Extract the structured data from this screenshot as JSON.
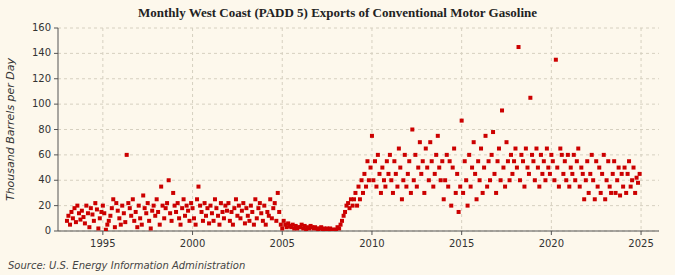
{
  "chart_data": {
    "type": "scatter",
    "title": "Monthly West Coast (PADD 5) Exports of Conventional Motor Gasoline",
    "ylabel": "Thousand Barrels per Day",
    "source": "Source: U.S. Energy Information Administration",
    "color": "#cc0000",
    "marker": "square",
    "grid": true,
    "xlim": [
      1992.5,
      2026
    ],
    "ylim": [
      0,
      160
    ],
    "xticks": [
      1995,
      2000,
      2005,
      2010,
      2015,
      2020,
      2025
    ],
    "yticks": [
      0,
      20,
      40,
      60,
      80,
      100,
      120,
      140,
      160
    ],
    "x": [
      1993.0,
      1993.08,
      1993.17,
      1993.25,
      1993.33,
      1993.42,
      1993.5,
      1993.58,
      1993.67,
      1993.75,
      1993.83,
      1993.92,
      1994.0,
      1994.08,
      1994.17,
      1994.25,
      1994.33,
      1994.42,
      1994.5,
      1994.58,
      1994.67,
      1994.75,
      1994.83,
      1994.92,
      1995.0,
      1995.08,
      1995.17,
      1995.25,
      1995.33,
      1995.42,
      1995.5,
      1995.58,
      1995.67,
      1995.75,
      1995.83,
      1995.92,
      1996.0,
      1996.08,
      1996.17,
      1996.25,
      1996.33,
      1996.42,
      1996.5,
      1996.58,
      1996.67,
      1996.75,
      1996.83,
      1996.92,
      1997.0,
      1997.08,
      1997.17,
      1997.25,
      1997.33,
      1997.42,
      1997.5,
      1997.58,
      1997.67,
      1997.75,
      1997.83,
      1997.92,
      1998.0,
      1998.08,
      1998.17,
      1998.25,
      1998.33,
      1998.42,
      1998.5,
      1998.58,
      1998.67,
      1998.75,
      1998.83,
      1998.92,
      1999.0,
      1999.08,
      1999.17,
      1999.25,
      1999.33,
      1999.42,
      1999.5,
      1999.58,
      1999.67,
      1999.75,
      1999.83,
      1999.92,
      2000.0,
      2000.08,
      2000.17,
      2000.25,
      2000.33,
      2000.42,
      2000.5,
      2000.58,
      2000.67,
      2000.75,
      2000.83,
      2000.92,
      2001.0,
      2001.08,
      2001.17,
      2001.25,
      2001.33,
      2001.42,
      2001.5,
      2001.58,
      2001.67,
      2001.75,
      2001.83,
      2001.92,
      2002.0,
      2002.08,
      2002.17,
      2002.25,
      2002.33,
      2002.42,
      2002.5,
      2002.58,
      2002.67,
      2002.75,
      2002.83,
      2002.92,
      2003.0,
      2003.08,
      2003.17,
      2003.25,
      2003.33,
      2003.42,
      2003.5,
      2003.58,
      2003.67,
      2003.75,
      2003.83,
      2003.92,
      2004.0,
      2004.08,
      2004.17,
      2004.25,
      2004.33,
      2004.42,
      2004.5,
      2004.58,
      2004.67,
      2004.75,
      2004.83,
      2004.92,
      2005.0,
      2005.08,
      2005.17,
      2005.25,
      2005.33,
      2005.42,
      2005.5,
      2005.58,
      2005.67,
      2005.75,
      2005.83,
      2005.92,
      2006.0,
      2006.08,
      2006.17,
      2006.25,
      2006.33,
      2006.42,
      2006.5,
      2006.58,
      2006.67,
      2006.75,
      2006.83,
      2006.92,
      2007.0,
      2007.08,
      2007.17,
      2007.25,
      2007.33,
      2007.42,
      2007.5,
      2007.58,
      2007.67,
      2007.75,
      2007.83,
      2007.92,
      2008.0,
      2008.08,
      2008.17,
      2008.25,
      2008.33,
      2008.42,
      2008.5,
      2008.58,
      2008.67,
      2008.75,
      2008.83,
      2008.92,
      2009.0,
      2009.08,
      2009.17,
      2009.25,
      2009.33,
      2009.42,
      2009.5,
      2009.58,
      2009.67,
      2009.75,
      2009.83,
      2009.92,
      2010.0,
      2010.08,
      2010.17,
      2010.25,
      2010.33,
      2010.42,
      2010.5,
      2010.58,
      2010.67,
      2010.75,
      2010.83,
      2010.92,
      2011.0,
      2011.08,
      2011.17,
      2011.25,
      2011.33,
      2011.42,
      2011.5,
      2011.58,
      2011.67,
      2011.75,
      2011.83,
      2011.92,
      2012.0,
      2012.08,
      2012.17,
      2012.25,
      2012.33,
      2012.42,
      2012.5,
      2012.58,
      2012.67,
      2012.75,
      2012.83,
      2012.92,
      2013.0,
      2013.08,
      2013.17,
      2013.25,
      2013.33,
      2013.42,
      2013.5,
      2013.58,
      2013.67,
      2013.75,
      2013.83,
      2013.92,
      2014.0,
      2014.08,
      2014.17,
      2014.25,
      2014.33,
      2014.42,
      2014.5,
      2014.58,
      2014.67,
      2014.75,
      2014.83,
      2014.92,
      2015.0,
      2015.08,
      2015.17,
      2015.25,
      2015.33,
      2015.42,
      2015.5,
      2015.58,
      2015.67,
      2015.75,
      2015.83,
      2015.92,
      2016.0,
      2016.08,
      2016.17,
      2016.25,
      2016.33,
      2016.42,
      2016.5,
      2016.58,
      2016.67,
      2016.75,
      2016.83,
      2016.92,
      2017.0,
      2017.08,
      2017.17,
      2017.25,
      2017.33,
      2017.42,
      2017.5,
      2017.58,
      2017.67,
      2017.75,
      2017.83,
      2017.92,
      2018.0,
      2018.08,
      2018.17,
      2018.25,
      2018.33,
      2018.42,
      2018.5,
      2018.58,
      2018.67,
      2018.75,
      2018.83,
      2018.92,
      2019.0,
      2019.08,
      2019.17,
      2019.25,
      2019.33,
      2019.42,
      2019.5,
      2019.58,
      2019.67,
      2019.75,
      2019.83,
      2019.92,
      2020.0,
      2020.08,
      2020.17,
      2020.25,
      2020.33,
      2020.42,
      2020.5,
      2020.58,
      2020.67,
      2020.75,
      2020.83,
      2020.92,
      2021.0,
      2021.08,
      2021.17,
      2021.25,
      2021.33,
      2021.42,
      2021.5,
      2021.58,
      2021.67,
      2021.75,
      2021.83,
      2021.92,
      2022.0,
      2022.08,
      2022.17,
      2022.25,
      2022.33,
      2022.42,
      2022.5,
      2022.58,
      2022.67,
      2022.75,
      2022.83,
      2022.92,
      2023.0,
      2023.08,
      2023.17,
      2023.25,
      2023.33,
      2023.42,
      2023.5,
      2023.58,
      2023.67,
      2023.75,
      2023.83,
      2023.92,
      2024.0,
      2024.08,
      2024.17,
      2024.25,
      2024.33,
      2024.42,
      2024.5,
      2024.58,
      2024.67,
      2024.75,
      2024.83,
      2024.92
    ],
    "values": [
      8,
      12,
      5,
      15,
      10,
      18,
      7,
      20,
      14,
      9,
      16,
      11,
      6,
      20,
      14,
      3,
      18,
      13,
      8,
      22,
      17,
      2,
      10,
      15,
      20,
      14,
      1,
      5,
      8,
      12,
      18,
      25,
      3,
      22,
      16,
      10,
      5,
      20,
      14,
      7,
      60,
      22,
      18,
      12,
      25,
      8,
      15,
      3,
      20,
      10,
      5,
      28,
      18,
      14,
      22,
      8,
      2,
      16,
      20,
      12,
      25,
      15,
      5,
      35,
      20,
      10,
      18,
      22,
      40,
      14,
      8,
      30,
      20,
      15,
      22,
      10,
      5,
      18,
      25,
      12,
      20,
      16,
      8,
      22,
      18,
      10,
      5,
      25,
      35,
      20,
      15,
      8,
      22,
      12,
      18,
      6,
      20,
      14,
      8,
      25,
      18,
      12,
      5,
      22,
      15,
      10,
      20,
      16,
      22,
      8,
      15,
      5,
      18,
      25,
      12,
      20,
      10,
      16,
      22,
      6,
      18,
      12,
      8,
      20,
      15,
      5,
      25,
      10,
      18,
      22,
      14,
      8,
      20,
      5,
      15,
      12,
      25,
      10,
      18,
      22,
      8,
      30,
      15,
      5,
      2,
      8,
      5,
      3,
      6,
      4,
      3,
      5,
      2,
      4,
      2,
      3,
      3,
      5,
      2,
      4,
      1,
      3,
      2,
      4,
      3,
      2,
      3,
      2,
      1,
      2,
      3,
      1,
      2,
      1,
      2,
      1,
      2,
      1,
      1,
      1,
      1,
      3,
      2,
      5,
      8,
      12,
      15,
      20,
      22,
      18,
      25,
      20,
      25,
      30,
      20,
      35,
      25,
      40,
      30,
      45,
      35,
      55,
      40,
      50,
      75,
      40,
      55,
      35,
      60,
      45,
      30,
      50,
      40,
      35,
      55,
      45,
      60,
      40,
      30,
      55,
      45,
      35,
      65,
      50,
      25,
      40,
      60,
      35,
      45,
      55,
      30,
      80,
      40,
      60,
      35,
      50,
      70,
      45,
      55,
      30,
      65,
      50,
      40,
      70,
      55,
      35,
      45,
      60,
      75,
      50,
      40,
      55,
      25,
      40,
      60,
      35,
      55,
      20,
      50,
      65,
      30,
      45,
      15,
      35,
      87,
      30,
      55,
      40,
      20,
      60,
      35,
      50,
      70,
      45,
      25,
      55,
      40,
      65,
      30,
      50,
      75,
      35,
      55,
      40,
      60,
      78,
      45,
      30,
      55,
      65,
      40,
      95,
      50,
      35,
      70,
      55,
      40,
      60,
      45,
      55,
      65,
      50,
      145,
      40,
      60,
      55,
      35,
      65,
      50,
      45,
      105,
      60,
      55,
      40,
      65,
      50,
      35,
      60,
      45,
      55,
      40,
      65,
      50,
      45,
      60,
      55,
      40,
      135,
      50,
      35,
      65,
      60,
      45,
      55,
      40,
      60,
      35,
      50,
      45,
      60,
      40,
      55,
      65,
      35,
      50,
      45,
      25,
      40,
      55,
      30,
      45,
      60,
      40,
      25,
      55,
      35,
      50,
      30,
      45,
      60,
      25,
      40,
      55,
      35,
      30,
      45,
      55,
      30,
      40,
      50,
      28,
      45,
      35,
      50,
      30,
      45,
      55,
      35,
      40,
      50,
      30,
      42,
      38,
      45
    ]
  }
}
